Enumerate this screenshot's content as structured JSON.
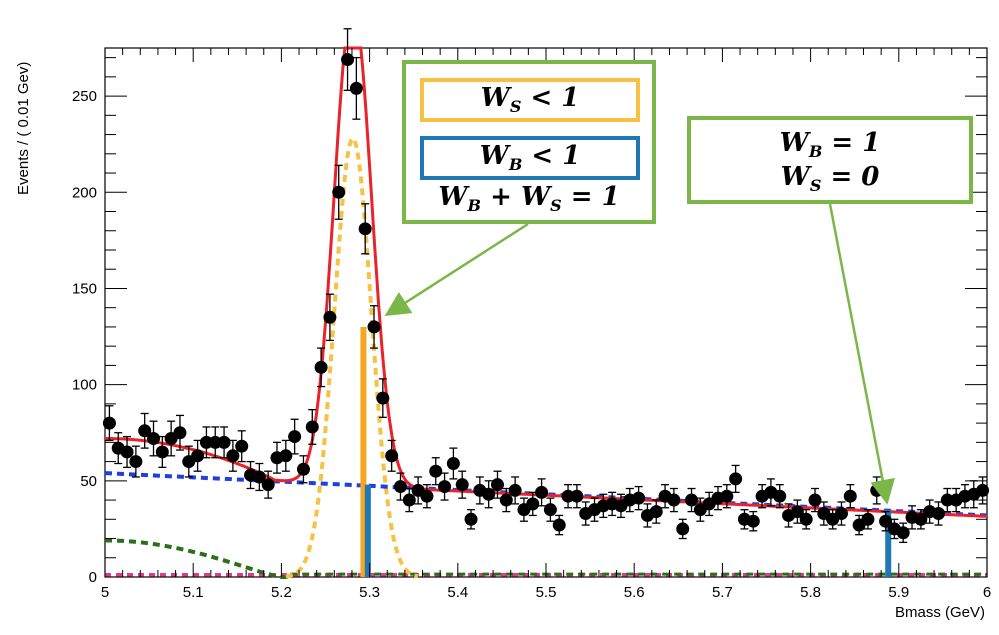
{
  "chart_data": {
    "type": "scatter",
    "xlabel": "Bmass (GeV)",
    "ylabel": "Events / ( 0.01  Gev)",
    "xlim": [
      5.0,
      6.0
    ],
    "ylim": [
      0,
      275
    ],
    "x_ticks": [
      "5",
      "5.1",
      "5.2",
      "5.3",
      "5.4",
      "5.5",
      "5.6",
      "5.7",
      "5.8",
      "5.9",
      "6"
    ],
    "y_ticks": [
      "0",
      "50",
      "100",
      "150",
      "200",
      "250"
    ],
    "colors": {
      "data": "#000000",
      "total": "#e8232a",
      "signal": "#f7c244",
      "background": "#1f3fe0",
      "low_mass": "#2c6e1a",
      "other": "#e0398e",
      "annotation_box": "#7ab648",
      "bar_signal": "#f5a623",
      "bar_background": "#1f78b4"
    },
    "data_points": {
      "x": [
        5.005,
        5.015,
        5.025,
        5.035,
        5.045,
        5.055,
        5.065,
        5.075,
        5.085,
        5.095,
        5.105,
        5.115,
        5.125,
        5.135,
        5.145,
        5.155,
        5.165,
        5.175,
        5.185,
        5.195,
        5.205,
        5.215,
        5.225,
        5.235,
        5.245,
        5.255,
        5.265,
        5.275,
        5.285,
        5.295,
        5.305,
        5.315,
        5.325,
        5.335,
        5.345,
        5.355,
        5.365,
        5.375,
        5.385,
        5.395,
        5.405,
        5.415,
        5.425,
        5.435,
        5.445,
        5.455,
        5.465,
        5.475,
        5.485,
        5.495,
        5.505,
        5.515,
        5.525,
        5.535,
        5.545,
        5.555,
        5.565,
        5.575,
        5.585,
        5.595,
        5.605,
        5.615,
        5.625,
        5.635,
        5.645,
        5.655,
        5.665,
        5.675,
        5.685,
        5.695,
        5.705,
        5.715,
        5.725,
        5.735,
        5.745,
        5.755,
        5.765,
        5.775,
        5.785,
        5.795,
        5.805,
        5.815,
        5.825,
        5.835,
        5.845,
        5.855,
        5.865,
        5.875,
        5.885,
        5.895,
        5.905,
        5.915,
        5.925,
        5.935,
        5.945,
        5.955,
        5.965,
        5.975,
        5.985,
        5.995
      ],
      "y": [
        80,
        67,
        65,
        60,
        76,
        72,
        65,
        72,
        75,
        60,
        63,
        70,
        70,
        70,
        63,
        68,
        53,
        52,
        48,
        62,
        63,
        73,
        56,
        78,
        109,
        135,
        200,
        269,
        254,
        181,
        130,
        93,
        63,
        47,
        40,
        45,
        42,
        55,
        47,
        59,
        48,
        30,
        45,
        43,
        48,
        40,
        45,
        35,
        38,
        44,
        35,
        27,
        42,
        42,
        33,
        35,
        37,
        38,
        37,
        40,
        41,
        32,
        34,
        42,
        40,
        25,
        40,
        35,
        38,
        41,
        42,
        51,
        30,
        29,
        42,
        44,
        42,
        32,
        34,
        30,
        40,
        33,
        30,
        33,
        42,
        27,
        30,
        45,
        29,
        25,
        23,
        31,
        30,
        34,
        33,
        40,
        40,
        42,
        43,
        45
      ],
      "errors": [
        9,
        8,
        8,
        8,
        9,
        9,
        8,
        9,
        9,
        8,
        8,
        8,
        8,
        8,
        8,
        8,
        7,
        7,
        7,
        8,
        8,
        9,
        7,
        9,
        10,
        12,
        14,
        16,
        16,
        13,
        11,
        10,
        8,
        7,
        6,
        7,
        6,
        7,
        7,
        8,
        7,
        5,
        7,
        7,
        7,
        6,
        7,
        6,
        6,
        7,
        6,
        5,
        6,
        6,
        6,
        6,
        6,
        6,
        6,
        6,
        6,
        6,
        6,
        6,
        6,
        5,
        6,
        6,
        6,
        6,
        6,
        7,
        5,
        5,
        6,
        7,
        6,
        6,
        6,
        5,
        6,
        6,
        5,
        6,
        6,
        5,
        5,
        7,
        5,
        5,
        5,
        6,
        5,
        6,
        6,
        6,
        6,
        6,
        7,
        7
      ]
    },
    "markers": {
      "signal_bar": {
        "x": 5.293,
        "y": 130
      },
      "background_bar_peak": {
        "x": 5.298,
        "y": 48
      },
      "background_bar_tail": {
        "x": 5.888,
        "y": 35
      }
    },
    "annotations": {
      "box_peak": {
        "ws_label": "W",
        "ws_sub": "S",
        "ws_rel": " < 1",
        "wb_label": "W",
        "wb_sub": "B",
        "wb_rel": " < 1",
        "sum_a": "W",
        "sum_a_sub": "B",
        "sum_op": " + ",
        "sum_b": "W",
        "sum_b_sub": "S",
        "sum_rel": " = 1",
        "arrow_to": {
          "x": 5.315,
          "y": 135
        }
      },
      "box_tail": {
        "wb_label": "W",
        "wb_sub": "B",
        "wb_rel": " = 1",
        "ws_label": "W",
        "ws_sub": "S",
        "ws_rel": " = 0",
        "arrow_to": {
          "x": 5.886,
          "y": 37
        }
      }
    }
  }
}
